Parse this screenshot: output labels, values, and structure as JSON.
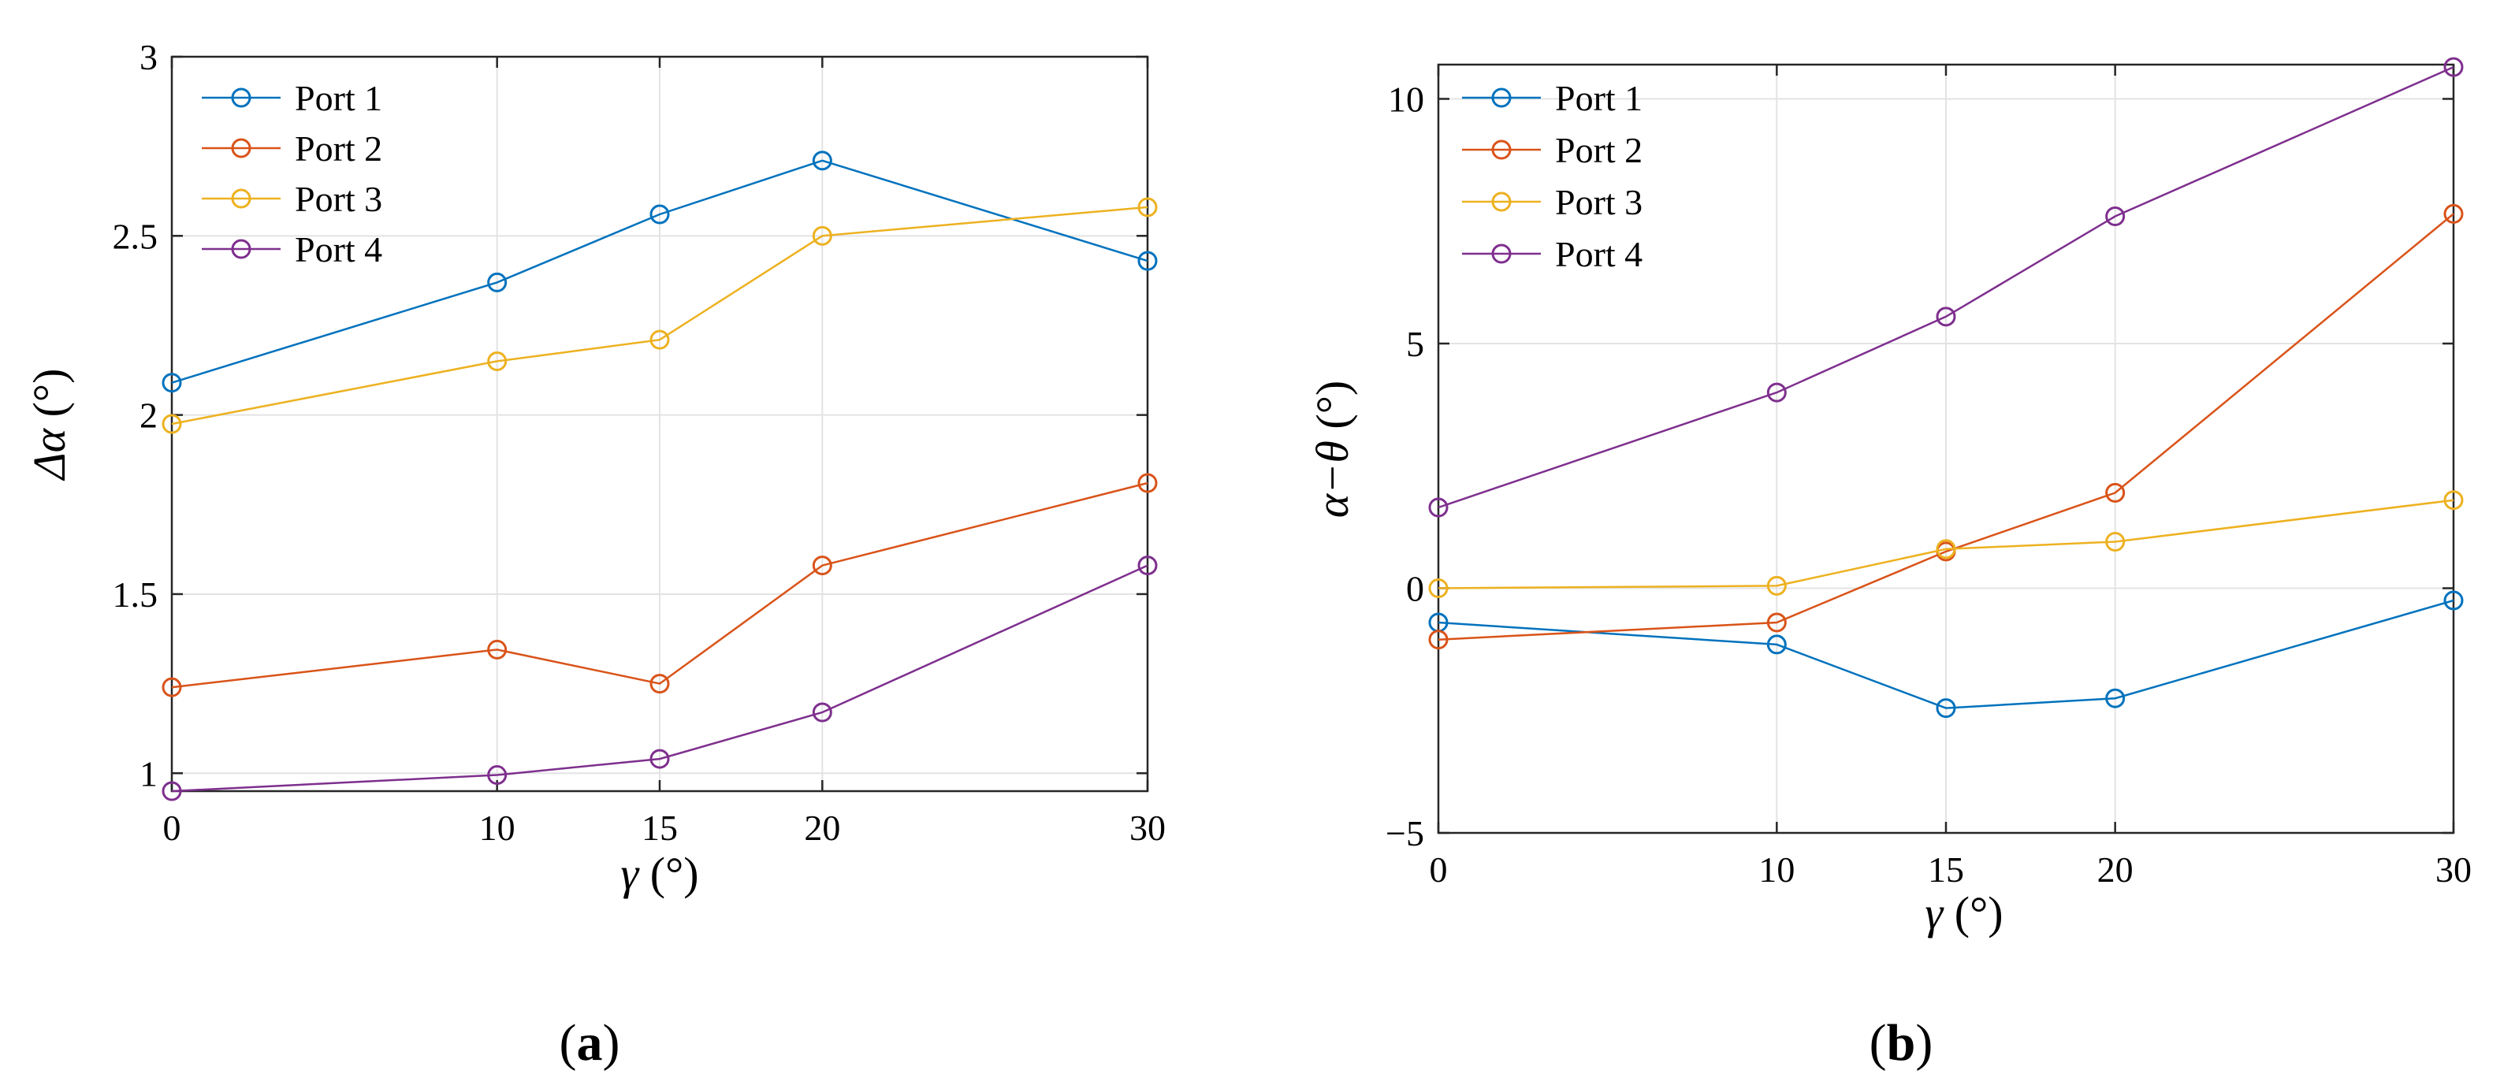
{
  "chart_data": [
    {
      "type": "line",
      "panel_label": "a",
      "title": "",
      "xlabel": "γ (°)",
      "xlabel_symbol": "γ",
      "xlabel_unit": " (°)",
      "ylabel": "Δα (°)",
      "ylabel_symbol": "Δα",
      "ylabel_unit": " (°)",
      "x": [
        0,
        10,
        15,
        20,
        30
      ],
      "xlim": [
        0,
        30
      ],
      "ylim": [
        0.95,
        3
      ],
      "xticks": [
        0,
        10,
        15,
        20,
        30
      ],
      "xtick_labels": [
        "0",
        "10",
        "15",
        "20",
        "30"
      ],
      "yticks": [
        1,
        1.5,
        2,
        2.5,
        3
      ],
      "ytick_labels": [
        "1",
        "1.5",
        "2",
        "2.5",
        "3"
      ],
      "grid": true,
      "legend_position": "top-left",
      "series": [
        {
          "name": "Port 1",
          "color": "#0072BD",
          "values": [
            2.09,
            2.37,
            2.56,
            2.71,
            2.43
          ]
        },
        {
          "name": "Port 2",
          "color": "#D95319",
          "values": [
            1.24,
            1.345,
            1.25,
            1.58,
            1.81
          ]
        },
        {
          "name": "Port 3",
          "color": "#EDB120",
          "values": [
            1.975,
            2.15,
            2.21,
            2.5,
            2.58
          ]
        },
        {
          "name": "Port 4",
          "color": "#7E2F8E",
          "values": [
            0.95,
            0.995,
            1.04,
            1.17,
            1.58
          ]
        }
      ]
    },
    {
      "type": "line",
      "panel_label": "b",
      "title": "",
      "xlabel": "γ (°)",
      "xlabel_symbol": "γ",
      "xlabel_unit": " (°)",
      "ylabel": "α−θ (°)",
      "ylabel_symbol": "α−θ",
      "ylabel_unit": " (°)",
      "x": [
        0,
        10,
        15,
        20,
        30
      ],
      "xlim": [
        0,
        30
      ],
      "ylim": [
        -5,
        10.7
      ],
      "xticks": [
        0,
        10,
        15,
        20,
        30
      ],
      "xtick_labels": [
        "0",
        "10",
        "15",
        "20",
        "30"
      ],
      "yticks": [
        -5,
        0,
        5,
        10
      ],
      "ytick_labels": [
        "−5",
        "0",
        "5",
        "10"
      ],
      "grid": true,
      "legend_position": "top-left",
      "series": [
        {
          "name": "Port 1",
          "color": "#0072BD",
          "values": [
            -0.7,
            -1.15,
            -2.45,
            -2.25,
            -0.25
          ]
        },
        {
          "name": "Port 2",
          "color": "#D95319",
          "values": [
            -1.05,
            -0.7,
            0.75,
            1.95,
            7.65
          ]
        },
        {
          "name": "Port 3",
          "color": "#EDB120",
          "values": [
            0.0,
            0.05,
            0.8,
            0.95,
            1.8
          ]
        },
        {
          "name": "Port 4",
          "color": "#7E2F8E",
          "values": [
            1.65,
            4.0,
            5.55,
            7.6,
            10.65
          ]
        }
      ]
    }
  ]
}
